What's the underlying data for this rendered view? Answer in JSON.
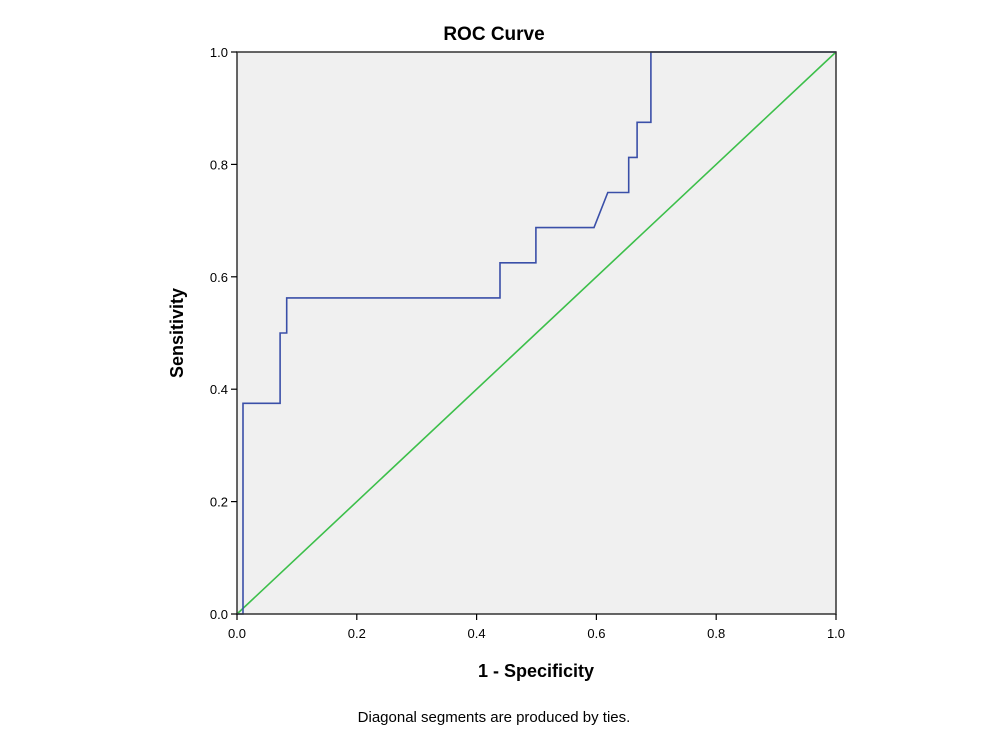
{
  "chart_data": {
    "type": "line",
    "title": "ROC Curve",
    "xlabel": "1 - Specificity",
    "ylabel": "Sensitivity",
    "xlim": [
      0,
      1
    ],
    "ylim": [
      0,
      1
    ],
    "x_ticks": [
      "0.0",
      "0.2",
      "0.4",
      "0.6",
      "0.8",
      "1.0"
    ],
    "y_ticks": [
      "0.0",
      "0.2",
      "0.4",
      "0.6",
      "0.8",
      "1.0"
    ],
    "grid": false,
    "background_color": "#f0f0f0",
    "series": [
      {
        "color": "#3a4fa8",
        "x": [
          0,
          0.01,
          0.01,
          0.072,
          0.072,
          0.083,
          0.083,
          0.439,
          0.439,
          0.499,
          0.499,
          0.596,
          0.619,
          0.654,
          0.654,
          0.668,
          0.668,
          0.691,
          0.691,
          1.0
        ],
        "y": [
          0,
          0,
          0.375,
          0.375,
          0.5,
          0.5,
          0.5625,
          0.5625,
          0.625,
          0.625,
          0.6875,
          0.6875,
          0.75,
          0.75,
          0.8125,
          0.8125,
          0.875,
          0.875,
          1.0,
          1.0
        ]
      },
      {
        "color": "#3cbf4a",
        "x": [
          0,
          1
        ],
        "y": [
          0,
          1
        ]
      }
    ],
    "footnote": "Diagonal segments are produced by ties."
  }
}
